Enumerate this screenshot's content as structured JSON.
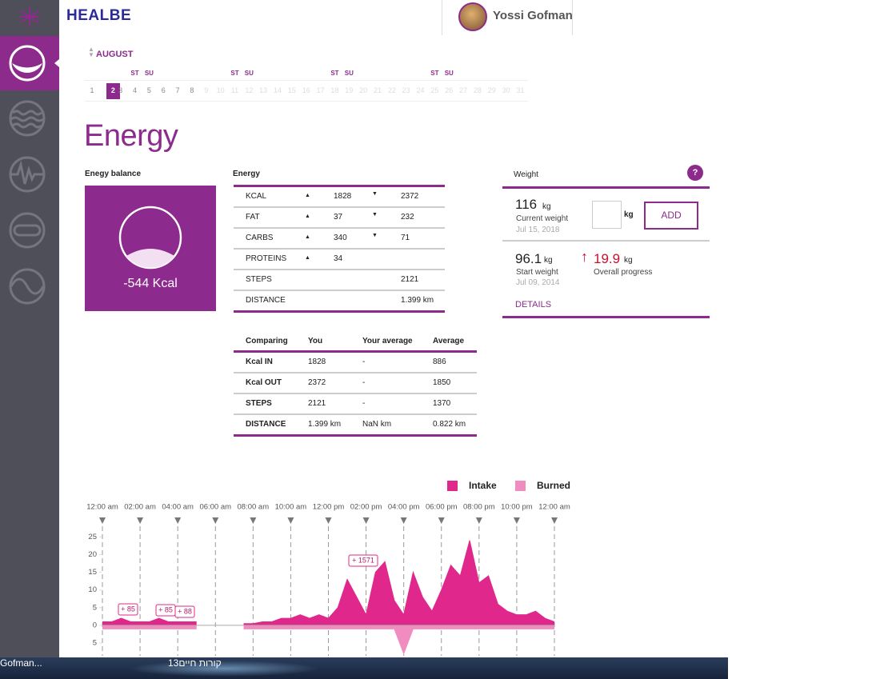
{
  "header": {
    "brand": "HEALBE",
    "user": "Yossi Gofman"
  },
  "calendar": {
    "month": "AUGUST",
    "weekday_headers": [
      "ST",
      "SU",
      "ST",
      "SU",
      "ST",
      "SU",
      "ST",
      "SU"
    ],
    "days": [
      "1",
      "2",
      "3",
      "4",
      "5",
      "6",
      "7",
      "8",
      "9",
      "10",
      "11",
      "12",
      "13",
      "14",
      "15",
      "16",
      "17",
      "18",
      "19",
      "20",
      "21",
      "22",
      "23",
      "24",
      "25",
      "26",
      "27",
      "28",
      "29",
      "30",
      "31"
    ]
  },
  "page_title": "Energy",
  "balance": {
    "title": "Enegy balance",
    "value": "-544 Kcal"
  },
  "energy_table": {
    "title": "Energy",
    "rows": [
      {
        "label": "KCAL",
        "in": "1828",
        "out": "2372"
      },
      {
        "label": "FAT",
        "in": "37",
        "out": "232"
      },
      {
        "label": "CARBS",
        "in": "340",
        "out": "71"
      },
      {
        "label": "PROTEINS",
        "in": "34"
      },
      {
        "label": "STEPS",
        "total": "2121"
      },
      {
        "label": "DISTANCE",
        "total": "1.399 km"
      }
    ]
  },
  "compare_table": {
    "header": [
      "Comparing",
      "You",
      "Your average",
      "Average"
    ],
    "rows": [
      [
        "Kcal IN",
        "1828",
        "-",
        "886"
      ],
      [
        "Kcal OUT",
        "2372",
        "-",
        "1850"
      ],
      [
        "STEPS",
        "2121",
        "-",
        "1370"
      ],
      [
        "DISTANCE",
        "1.399 km",
        "NaN km",
        "0.822 km"
      ]
    ]
  },
  "weight": {
    "title": "Weight",
    "help": "?",
    "current": {
      "value": "116",
      "unit": "kg",
      "label": "Current weight",
      "date": "Jul 15, 2018"
    },
    "input_unit": "kg",
    "add_button": "ADD",
    "start": {
      "value": "96.1",
      "unit": "kg",
      "label": "Start weight",
      "date": "Jul 09, 2014"
    },
    "progress": {
      "value": "19.9",
      "unit": "kg",
      "label": "Overall progress"
    },
    "details": "DETAILS"
  },
  "chart_data": {
    "type": "area",
    "x": [
      0,
      0.5,
      1,
      1.5,
      2,
      2.5,
      3,
      3.5,
      4,
      4.5,
      5,
      5.5,
      6,
      6.5,
      7,
      7.5,
      8,
      8.5,
      9,
      9.5,
      10,
      10.5,
      11,
      11.5,
      12,
      12.5,
      13,
      13.5,
      14,
      14.5,
      15,
      15.5,
      16,
      16.5,
      17,
      17.5,
      18,
      18.5,
      19,
      19.5,
      20,
      20.5,
      21,
      21.5,
      22,
      22.5,
      23,
      23.5,
      24
    ],
    "series": [
      {
        "name": "Intake",
        "color": "#e0288c",
        "values": [
          1,
          1,
          2,
          1,
          1,
          1,
          2,
          1,
          1,
          1,
          1,
          null,
          null,
          null,
          null,
          0.5,
          0.5,
          1,
          1,
          2,
          2,
          3,
          2,
          3,
          2,
          5,
          13,
          8,
          3,
          15,
          18,
          7,
          3,
          15,
          8,
          4,
          10,
          17,
          14,
          24,
          12,
          14,
          6,
          4,
          3,
          3,
          4,
          2,
          1
        ]
      },
      {
        "name": "Burned",
        "color": "#f08cc0",
        "values": [
          -1,
          -1,
          -1,
          -1,
          -1,
          -1,
          -1,
          -1,
          -1,
          -1,
          -1,
          null,
          null,
          null,
          null,
          -1,
          -1,
          -1,
          -1,
          -1,
          -1,
          -1,
          -1,
          -1,
          -1,
          -1,
          -1,
          -1,
          -1,
          -1,
          -1,
          -1,
          -8,
          -1,
          -1,
          -1,
          -1,
          -1,
          -1,
          -1,
          -1,
          -1,
          -1,
          -1,
          -1,
          -1,
          -1,
          -1,
          -1
        ]
      }
    ],
    "xlim": [
      0,
      24
    ],
    "xticks": [
      {
        "value": 0,
        "label": "12:00 am"
      },
      {
        "value": 2,
        "label": "02:00 am"
      },
      {
        "value": 4,
        "label": "04:00 am"
      },
      {
        "value": 6,
        "label": "06:00 am"
      },
      {
        "value": 8,
        "label": "08:00 am"
      },
      {
        "value": 10,
        "label": "10:00 am"
      },
      {
        "value": 12,
        "label": "12:00 pm"
      },
      {
        "value": 14,
        "label": "02:00 pm"
      },
      {
        "value": 16,
        "label": "04:00 pm"
      },
      {
        "value": 18,
        "label": "06:00 pm"
      },
      {
        "value": 20,
        "label": "08:00 pm"
      },
      {
        "value": 22,
        "label": "10:00 pm"
      },
      {
        "value": 24,
        "label": "12:00 am"
      }
    ],
    "ylim": [
      -8.6,
      28
    ],
    "yticks": [
      25,
      20,
      15,
      10,
      5,
      0,
      {
        "value": -5,
        "label": "5"
      }
    ],
    "annotations": [
      "+ 85",
      "+ 85",
      "+ 88",
      "+ 1571"
    ],
    "grid": true
  },
  "taskbar": {
    "items": [
      "Gofman...",
      "קורות חיים13"
    ]
  }
}
